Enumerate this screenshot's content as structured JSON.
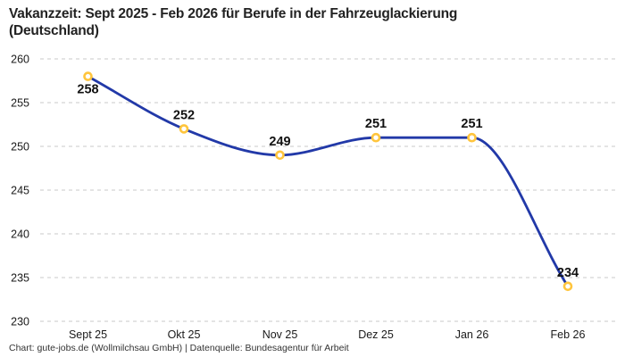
{
  "title": "Vakanzzeit: Sept 2025 - Feb 2026 für Berufe in der Fahrzeuglackierung\n(Deutschland)",
  "footer": "Chart: gute-jobs.de (Wollmilchsau GmbH) | Datenquelle: Bundesagentur für Arbeit",
  "chart_data": {
    "type": "line",
    "title": "Vakanzzeit: Sept 2025 - Feb 2026 für Berufe in der Fahrzeuglackierung (Deutschland)",
    "categories": [
      "Sept 25",
      "Okt 25",
      "Nov 25",
      "Dez 25",
      "Jan 26",
      "Feb 26"
    ],
    "series": [
      {
        "name": "Vakanzzeit",
        "values": [
          258,
          252,
          249,
          251,
          251,
          234
        ]
      }
    ],
    "data_labels": [
      "258",
      "252",
      "249",
      "251",
      "251",
      "234"
    ],
    "xlabel": "",
    "ylabel": "",
    "ylim": [
      230,
      260
    ],
    "yticks": [
      230,
      235,
      240,
      245,
      250,
      255,
      260
    ],
    "grid": "horizontal-dashed",
    "legend": "none",
    "colors": {
      "line": "#2239A8",
      "marker_ring": "#FFC53D",
      "marker_fill": "#FFFFFF",
      "grid": "#C9C9C9",
      "tick_text": "#1A1A1A",
      "data_label_text": "#111111"
    }
  }
}
